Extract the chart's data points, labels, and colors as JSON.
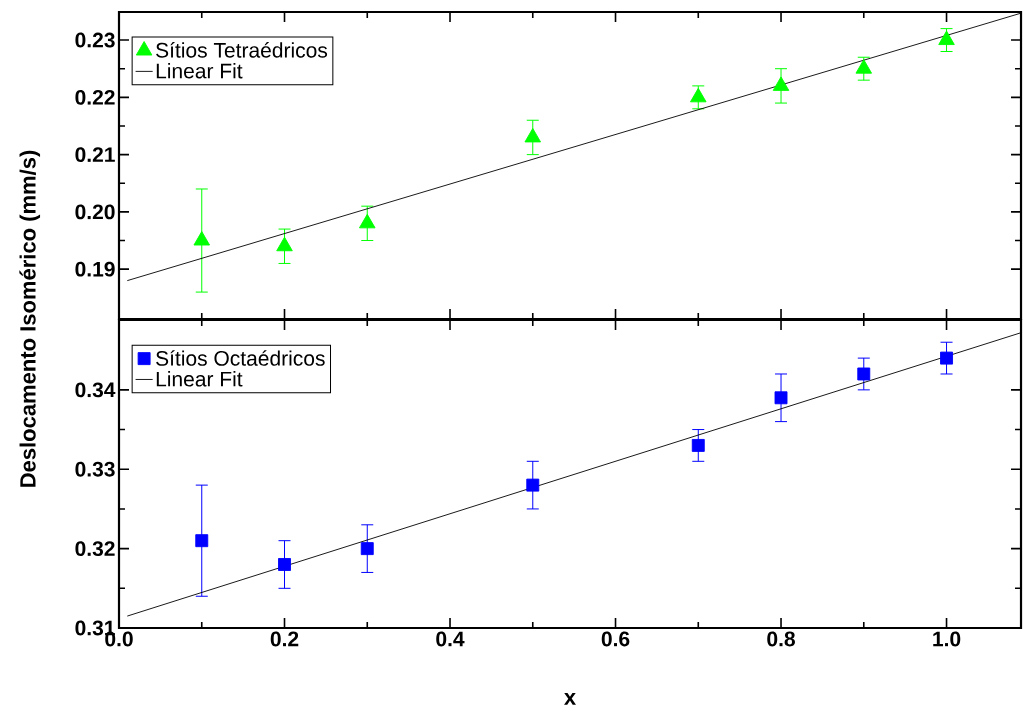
{
  "chart_data": [
    {
      "type": "scatter",
      "ylabel": "Deslocamento Isomérico (mm/s)",
      "xlim": [
        0,
        1.09
      ],
      "ylim": [
        0.1813,
        0.2349
      ],
      "xticks": [
        0,
        0.2,
        0.4,
        0.6,
        0.8,
        1.0
      ],
      "yticks": [
        0.19,
        {
          "value": 0.2,
          "label": "0.20"
        },
        0.21,
        0.22,
        0.23
      ],
      "tick_labels": "y",
      "legend": "top left",
      "series": [
        {
          "name": "Sítios Tetraédricos",
          "color": "#00ff00",
          "marker": "triangle",
          "x": [
            0.1,
            0.2,
            0.3,
            0.5,
            0.7,
            0.8,
            0.9,
            1.0
          ],
          "values": [
            0.195,
            0.194,
            0.198,
            0.213,
            0.22,
            0.222,
            0.225,
            0.23
          ],
          "errors": [
            0.009,
            0.003,
            0.003,
            0.003,
            0.002,
            0.003,
            0.002,
            0.002
          ]
        },
        {
          "name": "Linear Fit",
          "type": "line",
          "color": "#000000",
          "marker": "none",
          "x": [
            0.01,
            1.09
          ],
          "values": [
            0.188,
            0.2347
          ]
        }
      ]
    },
    {
      "type": "scatter",
      "xlabel": "x",
      "xlim": [
        0,
        1.09
      ],
      "ylim": [
        0.31,
        0.3488
      ],
      "xticks": [
        {
          "value": 0,
          "label": "0.0"
        },
        0.2,
        0.4,
        0.6,
        0.8,
        {
          "value": 1.0,
          "label": "1.0"
        }
      ],
      "yticks": [
        0.31,
        0.32,
        0.33,
        0.34
      ],
      "legend": "top left",
      "series": [
        {
          "name": "Sítios Octaédricos",
          "color": "#0000ff",
          "marker": "square",
          "x": [
            0.1,
            0.2,
            0.3,
            0.5,
            0.7,
            0.8,
            0.9,
            1.0
          ],
          "values": [
            0.321,
            0.318,
            0.32,
            0.328,
            0.333,
            0.339,
            0.342,
            0.344
          ],
          "errors": [
            0.007,
            0.003,
            0.003,
            0.003,
            0.002,
            0.003,
            0.002,
            0.002
          ]
        },
        {
          "name": "Linear Fit",
          "type": "line",
          "color": "#000000",
          "marker": "none",
          "x": [
            0.01,
            1.09
          ],
          "values": [
            0.3115,
            0.3472
          ]
        }
      ]
    }
  ]
}
